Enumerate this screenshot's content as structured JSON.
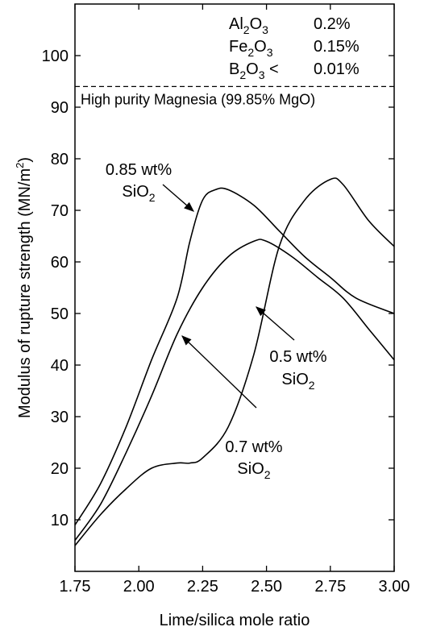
{
  "chart_data": {
    "type": "line",
    "xlabel": "Lime/silica mole ratio",
    "ylabel_main": "Modulus of rupture strength (MN/m",
    "ylabel_sup": "2",
    "ylabel_tail": ")",
    "xlim": [
      1.75,
      3.0
    ],
    "ylim": [
      0,
      110
    ],
    "xticks": [
      1.75,
      2.0,
      2.25,
      2.5,
      2.75,
      3.0
    ],
    "xtick_labels": [
      "1.75",
      "2.00",
      "2.25",
      "2.50",
      "2.75",
      "3.00"
    ],
    "yticks": [
      10,
      20,
      30,
      40,
      50,
      60,
      70,
      80,
      90,
      100
    ],
    "ytick_labels": [
      "10",
      "20",
      "30",
      "40",
      "50",
      "60",
      "70",
      "80",
      "90",
      "100"
    ],
    "reference_line": {
      "y": 94,
      "style": "dashed",
      "label": "High purity Magnesia (99.85% MgO)"
    },
    "composition": [
      {
        "oxide_main": "Al",
        "oxide_sub1": "2",
        "oxide_mid": "O",
        "oxide_sub2": "3",
        "prefix": "",
        "value": "0.2%"
      },
      {
        "oxide_main": "Fe",
        "oxide_sub1": "2",
        "oxide_mid": "O",
        "oxide_sub2": "3",
        "prefix": "",
        "value": "0.15%"
      },
      {
        "oxide_main": "B",
        "oxide_sub1": "2",
        "oxide_mid": "O",
        "oxide_sub2": "3",
        "prefix": "<",
        "value": "0.01%"
      }
    ],
    "series": [
      {
        "label_line1": "0.85 wt%",
        "label_line2_main": "SiO",
        "label_line2_sub": "2",
        "x": [
          1.75,
          1.85,
          1.95,
          2.05,
          2.15,
          2.2,
          2.25,
          2.3,
          2.35,
          2.45,
          2.55,
          2.65,
          2.75,
          2.85,
          3.0
        ],
        "y": [
          9,
          17,
          28,
          41,
          53,
          64,
          72,
          74,
          74,
          71,
          66,
          61,
          57,
          53,
          50
        ]
      },
      {
        "label_line1": "0.7 wt%",
        "label_line2_main": "SiO",
        "label_line2_sub": "2",
        "x": [
          1.75,
          1.85,
          1.95,
          2.05,
          2.15,
          2.25,
          2.35,
          2.45,
          2.5,
          2.6,
          2.7,
          2.8,
          2.9,
          3.0
        ],
        "y": [
          6,
          13,
          23,
          34,
          46,
          55,
          61,
          64,
          64,
          61,
          57,
          53,
          47,
          41
        ]
      },
      {
        "label_line1": "0.5 wt%",
        "label_line2_main": "SiO",
        "label_line2_sub": "2",
        "x": [
          1.75,
          1.85,
          1.95,
          2.05,
          2.15,
          2.2,
          2.25,
          2.35,
          2.45,
          2.55,
          2.65,
          2.75,
          2.8,
          2.9,
          3.0
        ],
        "y": [
          5,
          11,
          16,
          20,
          21,
          21,
          22,
          28,
          42,
          63,
          72,
          76,
          75,
          68,
          63
        ]
      }
    ]
  }
}
